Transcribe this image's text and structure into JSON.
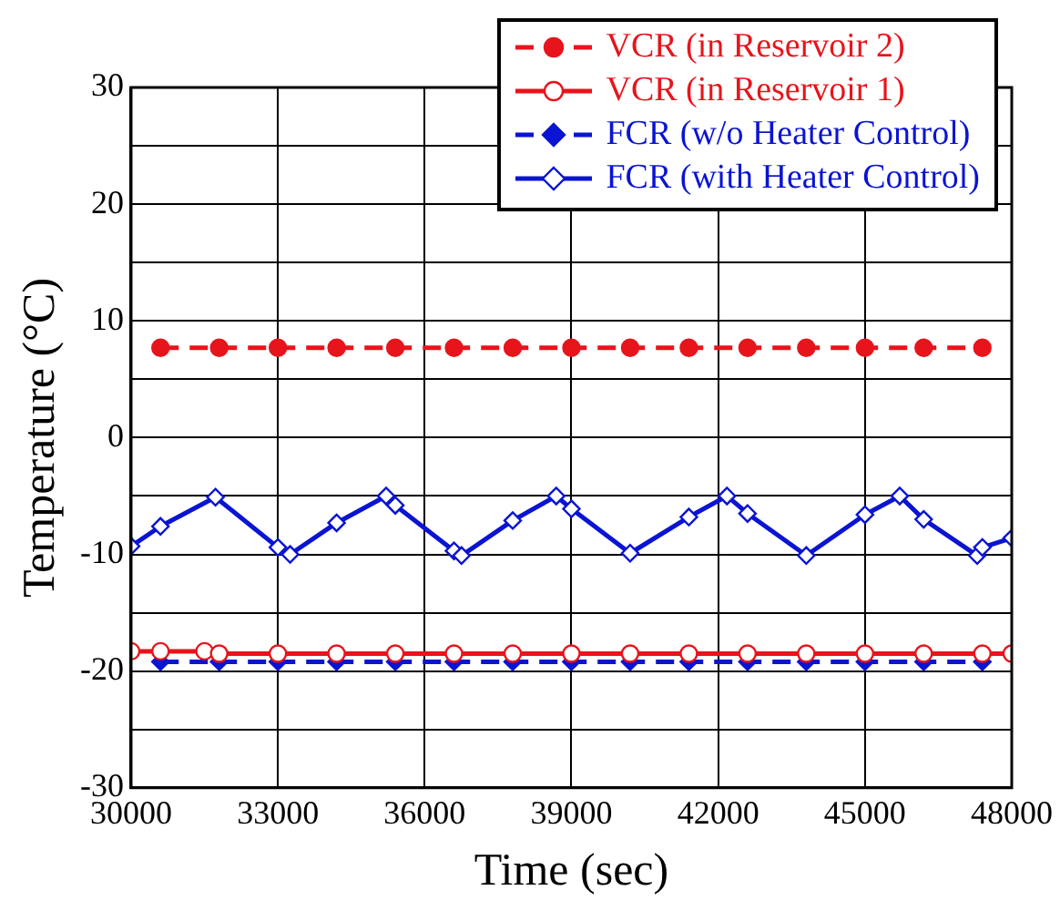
{
  "chart_data": {
    "type": "line",
    "xlabel": "Time (sec)",
    "ylabel": "Temperature (°C)",
    "xlim": [
      30000,
      48000
    ],
    "xticks": [
      30000,
      33000,
      36000,
      39000,
      42000,
      45000,
      48000
    ],
    "ylim": [
      -30,
      30
    ],
    "yticks": [
      -30,
      {
        "value": -25,
        "label": null
      },
      -20,
      {
        "value": -15,
        "label": null
      },
      -10,
      {
        "value": -5,
        "label": null
      },
      0,
      {
        "value": 5,
        "label": null
      },
      10,
      {
        "value": 15,
        "label": null
      },
      20,
      {
        "value": 25,
        "label": null
      },
      30
    ],
    "grid": true,
    "legend": "top right",
    "series": [
      {
        "name": "VCR (in Reservoir 2)",
        "color": "#e8141c",
        "marker": "circle",
        "line_style": "dashed",
        "x": [
          30600,
          31800,
          33000,
          34200,
          35400,
          36600,
          37800,
          39000,
          40200,
          41400,
          42600,
          43800,
          45000,
          46200,
          47400
        ],
        "values": [
          7.7,
          7.7,
          7.7,
          7.7,
          7.7,
          7.7,
          7.7,
          7.7,
          7.7,
          7.7,
          7.7,
          7.7,
          7.7,
          7.7,
          7.7
        ]
      },
      {
        "name": "VCR (in Reservoir 1)",
        "color": "#e8141c",
        "marker": "circle",
        "line_style": "solid",
        "x": [
          30000,
          30600,
          31500,
          31800,
          33000,
          34200,
          35400,
          36600,
          37800,
          39000,
          40200,
          41400,
          42600,
          43800,
          45000,
          46200,
          47400,
          48000
        ],
        "values": [
          -18.3,
          -18.3,
          -18.3,
          -18.5,
          -18.5,
          -18.5,
          -18.5,
          -18.5,
          -18.5,
          -18.5,
          -18.5,
          -18.5,
          -18.5,
          -18.5,
          -18.5,
          -18.5,
          -18.5,
          -18.5
        ]
      },
      {
        "name": "FCR (w/o Heater Control)",
        "color": "#0a14d2",
        "marker": "diamond",
        "line_style": "dashed",
        "x": [
          30600,
          31800,
          33000,
          34200,
          35400,
          36600,
          37800,
          39000,
          40200,
          41400,
          42600,
          43800,
          45000,
          46200,
          47400
        ],
        "values": [
          -19.2,
          -19.2,
          -19.2,
          -19.2,
          -19.2,
          -19.2,
          -19.2,
          -19.2,
          -19.2,
          -19.2,
          -19.2,
          -19.2,
          -19.2,
          -19.2,
          -19.2
        ]
      },
      {
        "name": "FCR (with Heater Control)",
        "color": "#0a14d2",
        "marker": "diamond",
        "line_style": "solid",
        "x": [
          30000,
          30600,
          31724,
          33000,
          33250,
          34200,
          35213,
          35400,
          36600,
          36753,
          37800,
          38689,
          39000,
          40200,
          41400,
          42179,
          42600,
          43800,
          45000,
          45711,
          46200,
          47294,
          47400,
          48000
        ],
        "values": [
          -9.3,
          -7.6,
          -5.1,
          -9.4,
          -10,
          -7.3,
          -5,
          -5.8,
          -9.7,
          -10.1,
          -7.1,
          -5,
          -6.1,
          -9.9,
          -6.8,
          -5,
          -6.5,
          -10.1,
          -6.6,
          -5,
          -7,
          -10.1,
          -9.4,
          -8.6
        ]
      }
    ]
  }
}
